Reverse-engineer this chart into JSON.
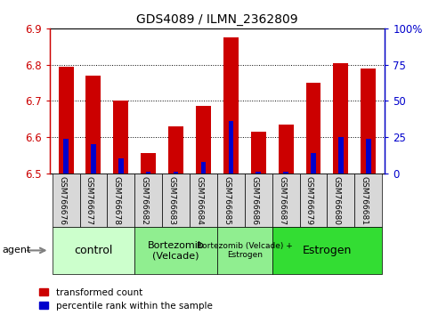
{
  "title": "GDS4089 / ILMN_2362809",
  "samples": [
    "GSM766676",
    "GSM766677",
    "GSM766678",
    "GSM766682",
    "GSM766683",
    "GSM766684",
    "GSM766685",
    "GSM766686",
    "GSM766687",
    "GSM766679",
    "GSM766680",
    "GSM766681"
  ],
  "red_values": [
    6.795,
    6.77,
    6.7,
    6.555,
    6.63,
    6.685,
    6.875,
    6.615,
    6.635,
    6.75,
    6.805,
    6.79
  ],
  "blue_values": [
    6.595,
    6.58,
    6.54,
    6.505,
    6.505,
    6.53,
    6.645,
    6.505,
    6.505,
    6.555,
    6.6,
    6.595
  ],
  "ymin": 6.5,
  "ymax": 6.9,
  "yticks": [
    6.5,
    6.6,
    6.7,
    6.8,
    6.9
  ],
  "y2min": 0,
  "y2max": 100,
  "y2ticks": [
    0,
    25,
    50,
    75,
    100
  ],
  "y2ticklabels": [
    "0",
    "25",
    "50",
    "75",
    "100%"
  ],
  "bar_color_red": "#cc0000",
  "bar_color_blue": "#0000cc",
  "bar_width": 0.55,
  "blue_bar_width": 0.18,
  "bg_color": "#ffffff",
  "grid_color": "black",
  "tick_color_left": "#cc0000",
  "tick_color_right": "#0000cc",
  "legend_red": "transformed count",
  "legend_blue": "percentile rank within the sample",
  "xlabel_agent": "agent",
  "group_labels": [
    "control",
    "Bortezomib\n(Velcade)",
    "Bortezomib (Velcade) +\nEstrogen",
    "Estrogen"
  ],
  "group_starts": [
    0,
    3,
    6,
    8
  ],
  "group_ends": [
    3,
    6,
    8,
    12
  ],
  "group_colors": [
    "#ccffcc",
    "#90ee90",
    "#90ee90",
    "#33dd33"
  ],
  "group_fontsizes": [
    9,
    8,
    6.5,
    9
  ],
  "sample_box_color": "#d8d8d8"
}
